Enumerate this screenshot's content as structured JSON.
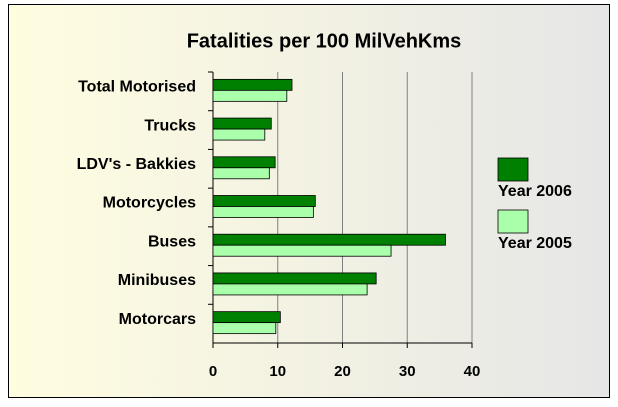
{
  "chart_data": {
    "type": "hbar",
    "title": "Fatalities per 100 MilVehKms",
    "categories": [
      "Total Motorised",
      "Trucks",
      "LDV's - Bakkies",
      "Motorcycles",
      "Buses",
      "Minibuses",
      "Motorcars"
    ],
    "series": [
      {
        "name": "Year 2006",
        "color": "#008000",
        "values": [
          12.2,
          9.0,
          9.6,
          15.8,
          35.9,
          25.2,
          10.4
        ]
      },
      {
        "name": "Year 2005",
        "color": "#aaffaa",
        "values": [
          11.4,
          8.0,
          8.7,
          15.5,
          27.5,
          23.8,
          9.7
        ]
      }
    ],
    "xlim": [
      0,
      40
    ],
    "xticks": [
      0,
      10,
      20,
      30,
      40
    ],
    "grid": true,
    "legend": "right"
  }
}
